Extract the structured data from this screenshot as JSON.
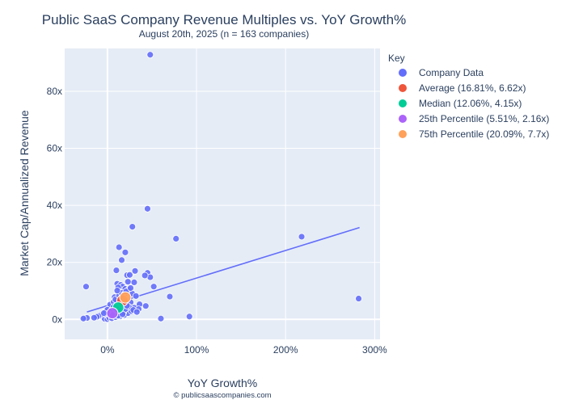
{
  "chart_data": {
    "type": "scatter",
    "title": "Public SaaS Company Revenue Multiples vs. YoY Growth%",
    "subtitle": "August 20th, 2025 (n = 163 companies)",
    "xlabel": "YoY Growth%",
    "ylabel": "Market Cap/Annualized Revenue",
    "source": "© publicsaascompanies.com",
    "xlim": [
      -48,
      306
    ],
    "ylim": [
      -7,
      95
    ],
    "x_ticks": [
      {
        "value": 0,
        "label": "0%"
      },
      {
        "value": 100,
        "label": "100%"
      },
      {
        "value": 200,
        "label": "200%"
      },
      {
        "value": 300,
        "label": "300%"
      }
    ],
    "y_ticks": [
      {
        "value": 0,
        "label": "0x"
      },
      {
        "value": 20,
        "label": "20x"
      },
      {
        "value": 40,
        "label": "40x"
      },
      {
        "value": 60,
        "label": "60x"
      },
      {
        "value": 80,
        "label": "80x"
      }
    ],
    "grid": true,
    "legend": {
      "title": "Key",
      "position": "right",
      "entries": [
        {
          "label": "Company Data",
          "color": "#636efa"
        },
        {
          "label": "Average (16.81%, 6.62x)",
          "color": "#ef553b"
        },
        {
          "label": "Median (12.06%, 4.15x)",
          "color": "#00cc96"
        },
        {
          "label": "25th Percentile (5.51%, 2.16x)",
          "color": "#ab63fa"
        },
        {
          "label": "75th Percentile (20.09%, 7.7x)",
          "color": "#ffa15a"
        }
      ]
    },
    "trendline": {
      "x": [
        -23,
        283
      ],
      "y": [
        2.6,
        32.2
      ],
      "color": "#636efa"
    },
    "series": [
      {
        "name": "Company Data",
        "color": "#636efa",
        "points": [
          [
            48,
            92.8
          ],
          [
            45,
            38.8
          ],
          [
            28,
            32.5
          ],
          [
            20,
            23.5
          ],
          [
            13,
            25.3
          ],
          [
            16,
            20.8
          ],
          [
            77,
            28.3
          ],
          [
            218,
            29.0
          ],
          [
            282,
            7.3
          ],
          [
            -24,
            11.5
          ],
          [
            52,
            11.5
          ],
          [
            70,
            8.0
          ],
          [
            92,
            1.0
          ],
          [
            60,
            0.3
          ],
          [
            -25,
            0.5
          ],
          [
            -23,
            0.5
          ],
          [
            -27,
            0.3
          ],
          [
            -5,
            0.8
          ],
          [
            -3,
            0.2
          ],
          [
            0,
            0.1
          ],
          [
            10,
            17.2
          ],
          [
            31,
            17.0
          ],
          [
            22,
            15.5
          ],
          [
            25,
            15.6
          ],
          [
            45,
            16.3
          ],
          [
            48,
            14.8
          ],
          [
            42,
            15.4
          ],
          [
            30,
            13.0
          ],
          [
            11,
            12.5
          ],
          [
            15,
            12.1
          ],
          [
            17,
            11.5
          ],
          [
            12,
            11.2
          ],
          [
            20,
            10.7
          ],
          [
            24,
            10.5
          ],
          [
            28,
            9.0
          ],
          [
            32,
            8.2
          ],
          [
            8,
            7.8
          ],
          [
            14,
            7.2
          ],
          [
            18,
            6.8
          ],
          [
            22,
            6.3
          ],
          [
            26,
            6.0
          ],
          [
            10,
            6.5
          ],
          [
            6,
            5.8
          ],
          [
            16,
            5.4
          ],
          [
            20,
            5.0
          ],
          [
            36,
            5.3
          ],
          [
            43,
            4.7
          ],
          [
            5,
            4.9
          ],
          [
            12,
            4.3
          ],
          [
            15,
            4.0
          ],
          [
            25,
            3.9
          ],
          [
            30,
            4.1
          ],
          [
            35,
            3.6
          ],
          [
            2,
            3.8
          ],
          [
            8,
            3.5
          ],
          [
            11,
            3.0
          ],
          [
            18,
            3.2
          ],
          [
            21,
            2.7
          ],
          [
            3,
            2.6
          ],
          [
            6,
            2.3
          ],
          [
            9,
            2.0
          ],
          [
            13,
            1.8
          ],
          [
            16,
            2.1
          ],
          [
            -1,
            1.6
          ],
          [
            1,
            1.2
          ],
          [
            4,
            1.0
          ],
          [
            7,
            1.4
          ],
          [
            -8,
            1.5
          ],
          [
            -10,
            1.2
          ],
          [
            -12,
            0.9
          ],
          [
            -15,
            0.6
          ],
          [
            2,
            0.6
          ],
          [
            5,
            0.4
          ],
          [
            9,
            0.8
          ],
          [
            14,
            1.1
          ],
          [
            19,
            1.5
          ],
          [
            23,
            2.2
          ],
          [
            27,
            2.9
          ],
          [
            3,
            5.2
          ],
          [
            7,
            6.1
          ],
          [
            9,
            7.0
          ],
          [
            13,
            8.4
          ],
          [
            16,
            9.3
          ],
          [
            19,
            8.8
          ],
          [
            21,
            9.8
          ],
          [
            23,
            13.2
          ],
          [
            26,
            11.0
          ],
          [
            11,
            10.1
          ],
          [
            14,
            6.6
          ],
          [
            17,
            4.6
          ],
          [
            24,
            4.4
          ],
          [
            29,
            3.3
          ],
          [
            33,
            2.6
          ],
          [
            -2,
            2.8
          ],
          [
            0,
            3.4
          ],
          [
            4,
            2.9
          ],
          [
            10,
            3.9
          ],
          [
            12,
            2.5
          ],
          [
            15,
            3.1
          ],
          [
            18,
            2.4
          ],
          [
            20,
            3.6
          ],
          [
            22,
            4.8
          ],
          [
            7,
            4.4
          ],
          [
            1,
            2.0
          ],
          [
            -4,
            2.2
          ],
          [
            6,
            1.6
          ],
          [
            12,
            1.3
          ],
          [
            17,
            1.8
          ]
        ]
      },
      {
        "name": "Average (16.81%, 6.62x)",
        "color": "#ef553b",
        "points": [
          [
            16.81,
            6.62
          ]
        ]
      },
      {
        "name": "Median (12.06%, 4.15x)",
        "color": "#00cc96",
        "points": [
          [
            12.06,
            4.15
          ]
        ]
      },
      {
        "name": "25th Percentile (5.51%, 2.16x)",
        "color": "#ab63fa",
        "points": [
          [
            5.51,
            2.16
          ]
        ]
      },
      {
        "name": "75th Percentile (20.09%, 7.7x)",
        "color": "#ffa15a",
        "points": [
          [
            20.09,
            7.7
          ]
        ]
      }
    ]
  }
}
